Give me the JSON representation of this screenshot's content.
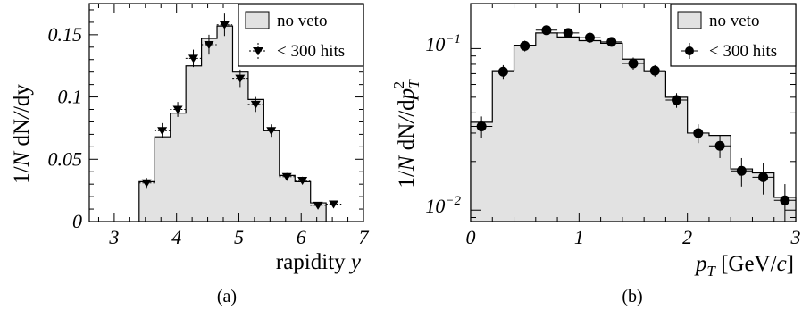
{
  "chart_data": [
    {
      "type": "bar",
      "panel_caption": "(a)",
      "xlabel": "rapidity y",
      "ylabel": "1/N dN/dy",
      "xlim": [
        2.6,
        7.0
      ],
      "ylim": [
        0,
        0.175
      ],
      "xticks": [
        "3",
        "4",
        "5",
        "6",
        "7"
      ],
      "yticks": [
        "0",
        "0.05",
        "0.1",
        "0.15"
      ],
      "grid": false,
      "legend_position": "top-right",
      "bin_edges": [
        3.4,
        3.65,
        3.9,
        4.15,
        4.4,
        4.65,
        4.9,
        5.15,
        5.4,
        5.65,
        5.9,
        6.15,
        6.4
      ],
      "series": [
        {
          "name": "no veto",
          "style": "filled-histogram",
          "values": [
            0.032,
            0.068,
            0.087,
            0.125,
            0.147,
            0.157,
            0.12,
            0.098,
            0.073,
            0.037,
            0.032,
            0.015
          ]
        },
        {
          "name": "< 300 hits",
          "style": "triangle-markers",
          "x": [
            3.52,
            3.77,
            4.02,
            4.27,
            4.52,
            4.77,
            5.02,
            5.27,
            5.52,
            5.77,
            6.02,
            6.27,
            6.52
          ],
          "values": [
            0.031,
            0.073,
            0.09,
            0.131,
            0.142,
            0.158,
            0.115,
            0.094,
            0.073,
            0.036,
            0.033,
            0.013,
            0.014
          ],
          "errors": [
            0.004,
            0.006,
            0.006,
            0.007,
            0.008,
            0.009,
            0.007,
            0.006,
            0.005,
            0.003,
            0.003,
            0.002,
            0.002
          ]
        }
      ]
    },
    {
      "type": "bar",
      "panel_caption": "(b)",
      "xlabel": "p_T [GeV/c]",
      "ylabel": "1/N dN/dp_T^2",
      "xlim": [
        0,
        3.0
      ],
      "ylim": [
        0.0085,
        0.19
      ],
      "yscale": "log",
      "xticks": [
        "0",
        "1",
        "2",
        "3"
      ],
      "yticks": [
        "10^-2",
        "10^-1"
      ],
      "grid": false,
      "legend_position": "top-right",
      "bin_edges": [
        0,
        0.2,
        0.4,
        0.6,
        0.8,
        1.0,
        1.2,
        1.4,
        1.6,
        1.8,
        2.0,
        2.2,
        2.4,
        2.6,
        2.8,
        3.0
      ],
      "series": [
        {
          "name": "no veto",
          "style": "filled-histogram",
          "values": [
            0.035,
            0.073,
            0.105,
            0.125,
            0.118,
            0.112,
            0.108,
            0.086,
            0.072,
            0.05,
            0.03,
            0.029,
            0.018,
            0.017,
            0.012
          ]
        },
        {
          "name": "< 300 hits",
          "style": "circle-markers",
          "x": [
            0.1,
            0.3,
            0.5,
            0.7,
            0.9,
            1.1,
            1.3,
            1.5,
            1.7,
            1.9,
            2.1,
            2.3,
            2.5,
            2.7,
            2.9
          ],
          "values": [
            0.033,
            0.072,
            0.104,
            0.13,
            0.125,
            0.117,
            0.11,
            0.081,
            0.073,
            0.048,
            0.03,
            0.025,
            0.0175,
            0.016,
            0.0115
          ],
          "errors": [
            0.005,
            0.007,
            0.008,
            0.008,
            0.008,
            0.008,
            0.007,
            0.007,
            0.006,
            0.005,
            0.004,
            0.004,
            0.0035,
            0.0035,
            0.003
          ]
        }
      ]
    }
  ],
  "panels": {
    "a": {
      "caption": "(a)",
      "ylabel_prefix": "1/",
      "ylabel_n": "N",
      "ylabel_dn": " dN",
      "ylabel_slash": "/dy",
      "xlabel_main": "rapidity ",
      "xlabel_var": "y",
      "legend": [
        "no veto",
        "< 300 hits"
      ]
    },
    "b": {
      "caption": "(b)",
      "ylabel_prefix": "1/",
      "ylabel_n": "N",
      "ylabel_dn": " dN",
      "ylabel_slash": "/d",
      "ylabel_p": "p",
      "ylabel_sub": "T",
      "ylabel_sup": "2",
      "xlabel_p": "p",
      "xlabel_sub": "T",
      "xlabel_unit": " [GeV/",
      "xlabel_c": "c",
      "xlabel_close": "]",
      "legend": [
        "no veto",
        "< 300 hits"
      ],
      "ytick_base": "10",
      "ytick_exp_lo": "−2",
      "ytick_exp_hi": "−1"
    }
  }
}
